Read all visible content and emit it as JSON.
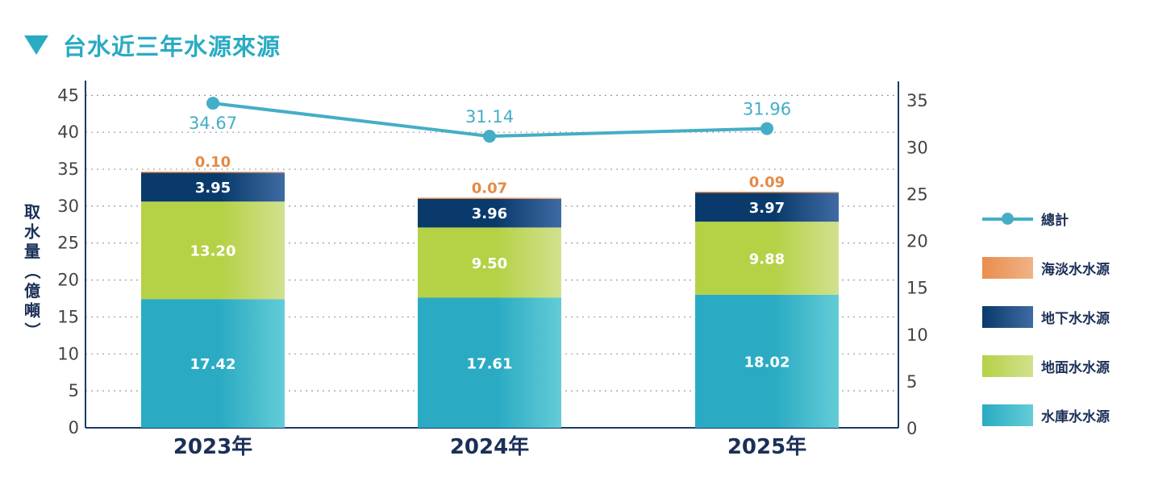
{
  "page": {
    "title": "台水近三年水源來源"
  },
  "chart_data": {
    "type": "bar",
    "title": "台水近三年水源來源",
    "ylabel": "取水量（億噸）",
    "categories": [
      "2023年",
      "2024年",
      "2025年"
    ],
    "left_axis": {
      "ylim": [
        0,
        47
      ],
      "ticks": [
        0,
        5,
        10,
        15,
        20,
        25,
        30,
        35,
        40,
        45
      ]
    },
    "right_axis": {
      "ylim": [
        0,
        37
      ],
      "ticks": [
        0,
        5,
        10,
        15,
        20,
        25,
        30,
        35
      ]
    },
    "grid": true,
    "legend_position": "right",
    "series": [
      {
        "name": "水庫水水源",
        "values": [
          17.42,
          17.61,
          18.02
        ],
        "labels": [
          "17.42",
          "17.61",
          "18.02"
        ],
        "color": "#2aabc3",
        "color2": "#63ccd7"
      },
      {
        "name": "地面水水源",
        "values": [
          13.2,
          9.5,
          9.88
        ],
        "labels": [
          "13.20",
          "9.50",
          "9.88"
        ],
        "color": "#b5d146",
        "color2": "#d1e18e"
      },
      {
        "name": "地下水水源",
        "values": [
          3.95,
          3.96,
          3.97
        ],
        "labels": [
          "3.95",
          "3.96",
          "3.97"
        ],
        "color": "#093a6b",
        "color2": "#3e6ba3"
      },
      {
        "name": "海淡水水源",
        "values": [
          0.1,
          0.07,
          0.09
        ],
        "labels": [
          "0.10",
          "0.07",
          "0.09"
        ],
        "color": "#ea8d4d",
        "color2": "#f0b387"
      }
    ],
    "total": {
      "name": "總計",
      "values": [
        34.67,
        31.14,
        31.96
      ],
      "labels": [
        "34.67",
        "31.14",
        "31.96"
      ],
      "color": "#44aec6"
    }
  }
}
